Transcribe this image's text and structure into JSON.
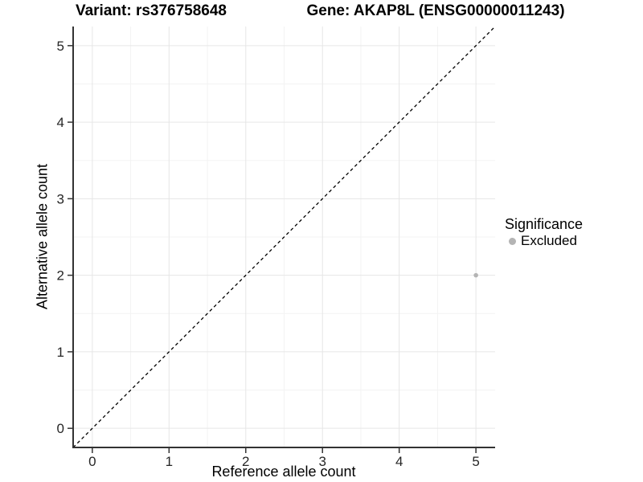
{
  "chart_data": {
    "type": "scatter",
    "title_left": "Variant: rs376758648",
    "title_right": "Gene: AKAP8L (ENSG00000011243)",
    "xlabel": "Reference allele count",
    "ylabel": "Alternative allele count",
    "xlim": [
      -0.25,
      5.25
    ],
    "ylim": [
      -0.25,
      5.25
    ],
    "x_ticks": [
      0,
      1,
      2,
      3,
      4,
      5
    ],
    "y_ticks": [
      0,
      1,
      2,
      3,
      4,
      5
    ],
    "minor_grid_step": 0.5,
    "grid": "major+minor",
    "points": [
      {
        "x": 5,
        "y": 2,
        "significance": "Excluded"
      }
    ],
    "abline": {
      "slope": 1,
      "intercept": 0,
      "style": "dashed"
    },
    "legend": {
      "title": "Significance",
      "position": "right",
      "items": [
        {
          "label": "Excluded",
          "color": "#b4b4b4"
        }
      ]
    },
    "colors": {
      "point_excluded": "#b4b4b4",
      "grid_major": "#e6e6e6",
      "grid_minor": "#f3f3f3",
      "axis_line": "#333333",
      "tick_label": "#262626",
      "abline": "#000000",
      "background": "#ffffff"
    }
  }
}
